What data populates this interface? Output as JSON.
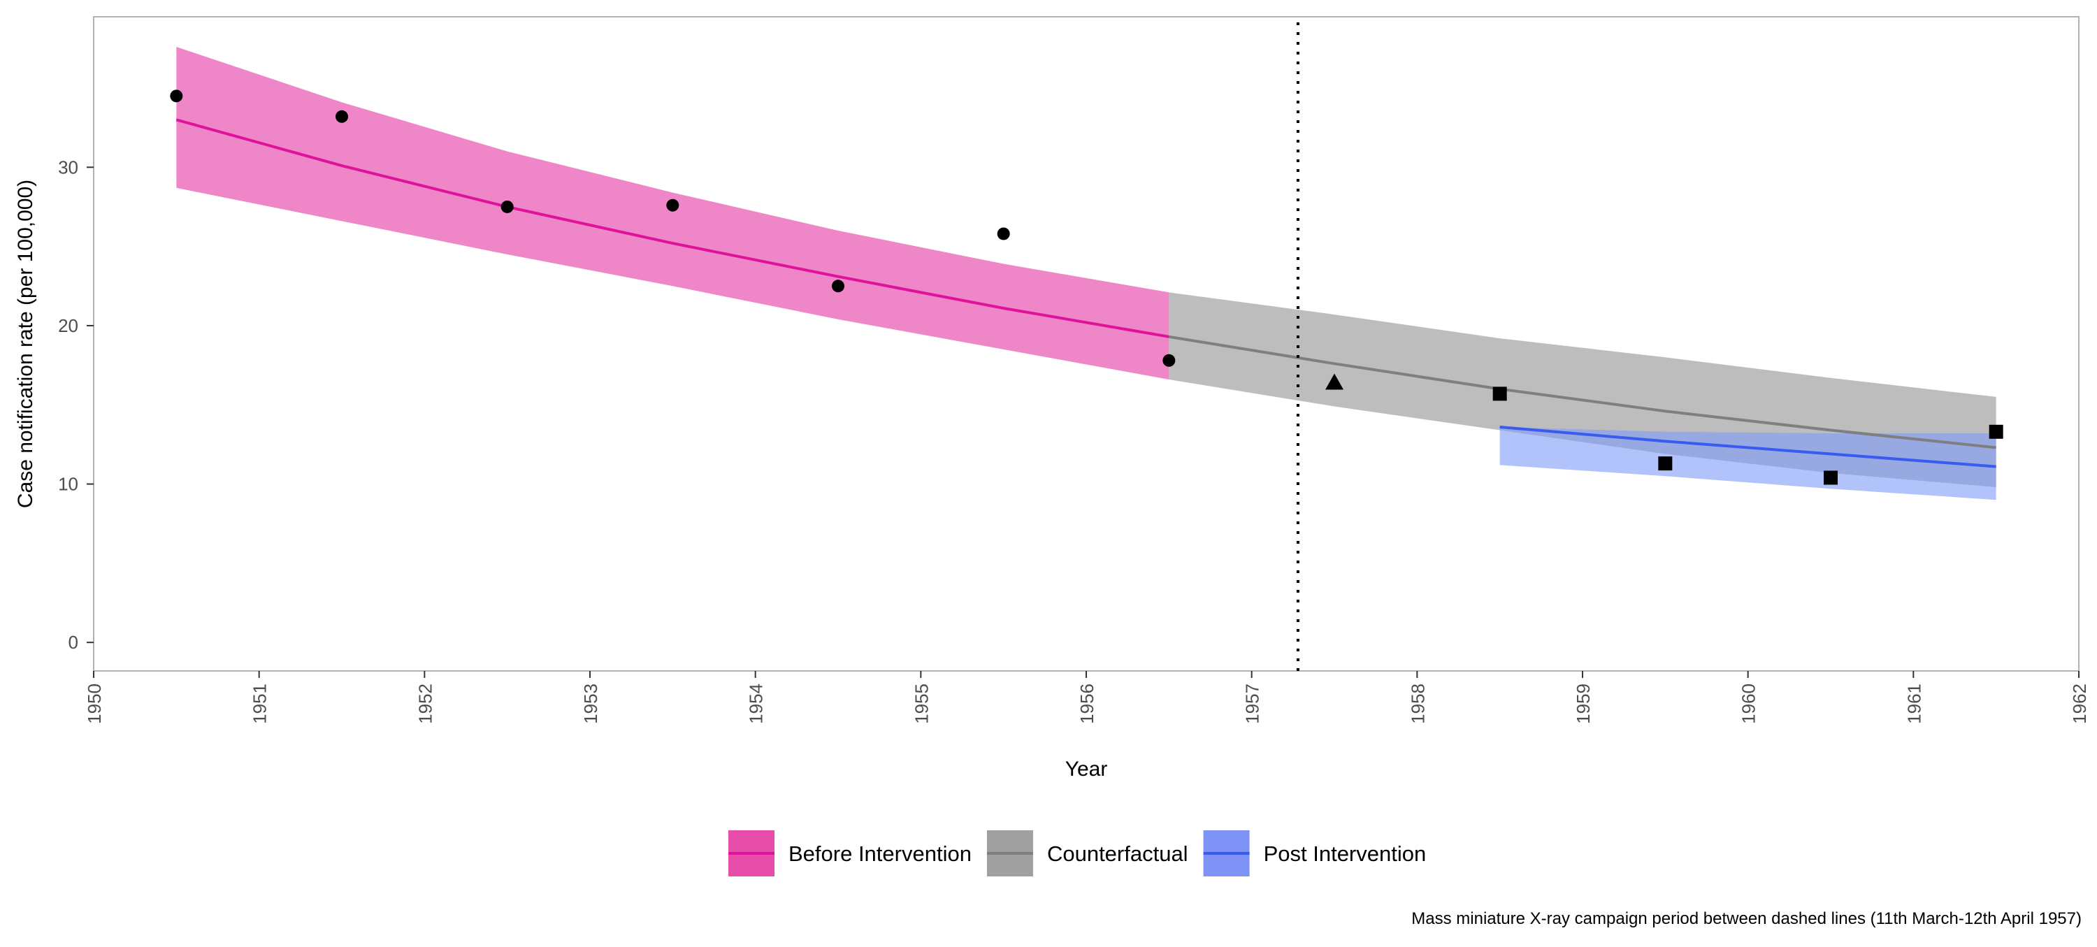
{
  "chart_data": {
    "type": "line",
    "xlabel": "Year",
    "ylabel": "Case notification rate (per 100,000)",
    "xlim": [
      1950,
      1962
    ],
    "ylim": [
      -1.8,
      39.5
    ],
    "x_ticks": [
      1950,
      1951,
      1952,
      1953,
      1954,
      1955,
      1956,
      1957,
      1958,
      1959,
      1960,
      1961,
      1962
    ],
    "y_ticks": [
      0,
      10,
      20,
      30
    ],
    "grid": false,
    "legend_position": "bottom",
    "caption": "Mass miniature X-ray campaign period between dashed lines (11th March-12th April 1957)",
    "intervention_x": 1957.28,
    "series": [
      {
        "name": "Before Intervention",
        "color": "#e0129a",
        "band_color": "#ee86c8",
        "legend_fill": "#e64ea9",
        "x": [
          1950.5,
          1951.5,
          1952.5,
          1953.5,
          1954.5,
          1955.5,
          1956.5
        ],
        "fit": [
          33.0,
          30.1,
          27.5,
          25.2,
          23.1,
          21.1,
          19.3
        ],
        "lower": [
          28.7,
          26.6,
          24.5,
          22.5,
          20.4,
          18.5,
          16.6
        ],
        "upper": [
          37.6,
          34.1,
          31.0,
          28.4,
          26.0,
          23.9,
          22.1
        ]
      },
      {
        "name": "Counterfactual",
        "color": "#7f7f7f",
        "band_color": "#bdbdbd",
        "legend_fill": "#a0a0a0",
        "x": [
          1956.5,
          1957.5,
          1958.5,
          1959.5,
          1960.5,
          1961.5
        ],
        "fit": [
          19.3,
          17.6,
          16.0,
          14.6,
          13.4,
          12.3
        ],
        "lower": [
          16.6,
          14.9,
          13.4,
          11.9,
          10.7,
          9.8
        ],
        "upper": [
          22.1,
          20.7,
          19.2,
          18.0,
          16.7,
          15.5
        ]
      },
      {
        "name": "Post Intervention",
        "color": "#3a5bf0",
        "band_color": "#7d9bf7",
        "legend_fill": "#7f93f7",
        "x": [
          1958.5,
          1959.5,
          1960.5,
          1961.5
        ],
        "fit": [
          13.6,
          12.7,
          11.9,
          11.1
        ],
        "lower": [
          11.2,
          10.5,
          9.7,
          9.0
        ],
        "upper": [
          13.6,
          13.3,
          13.2,
          13.2
        ]
      }
    ],
    "observed": [
      {
        "x": 1950.5,
        "y": 34.5,
        "shape": "circle"
      },
      {
        "x": 1951.5,
        "y": 33.2,
        "shape": "circle"
      },
      {
        "x": 1952.5,
        "y": 27.5,
        "shape": "circle"
      },
      {
        "x": 1953.5,
        "y": 27.6,
        "shape": "circle"
      },
      {
        "x": 1954.5,
        "y": 22.5,
        "shape": "circle"
      },
      {
        "x": 1955.5,
        "y": 25.8,
        "shape": "circle"
      },
      {
        "x": 1956.5,
        "y": 17.8,
        "shape": "circle"
      },
      {
        "x": 1957.5,
        "y": 16.4,
        "shape": "triangle"
      },
      {
        "x": 1958.5,
        "y": 15.7,
        "shape": "square"
      },
      {
        "x": 1959.5,
        "y": 11.3,
        "shape": "square"
      },
      {
        "x": 1960.5,
        "y": 10.4,
        "shape": "square"
      },
      {
        "x": 1961.5,
        "y": 13.3,
        "shape": "square"
      }
    ]
  }
}
